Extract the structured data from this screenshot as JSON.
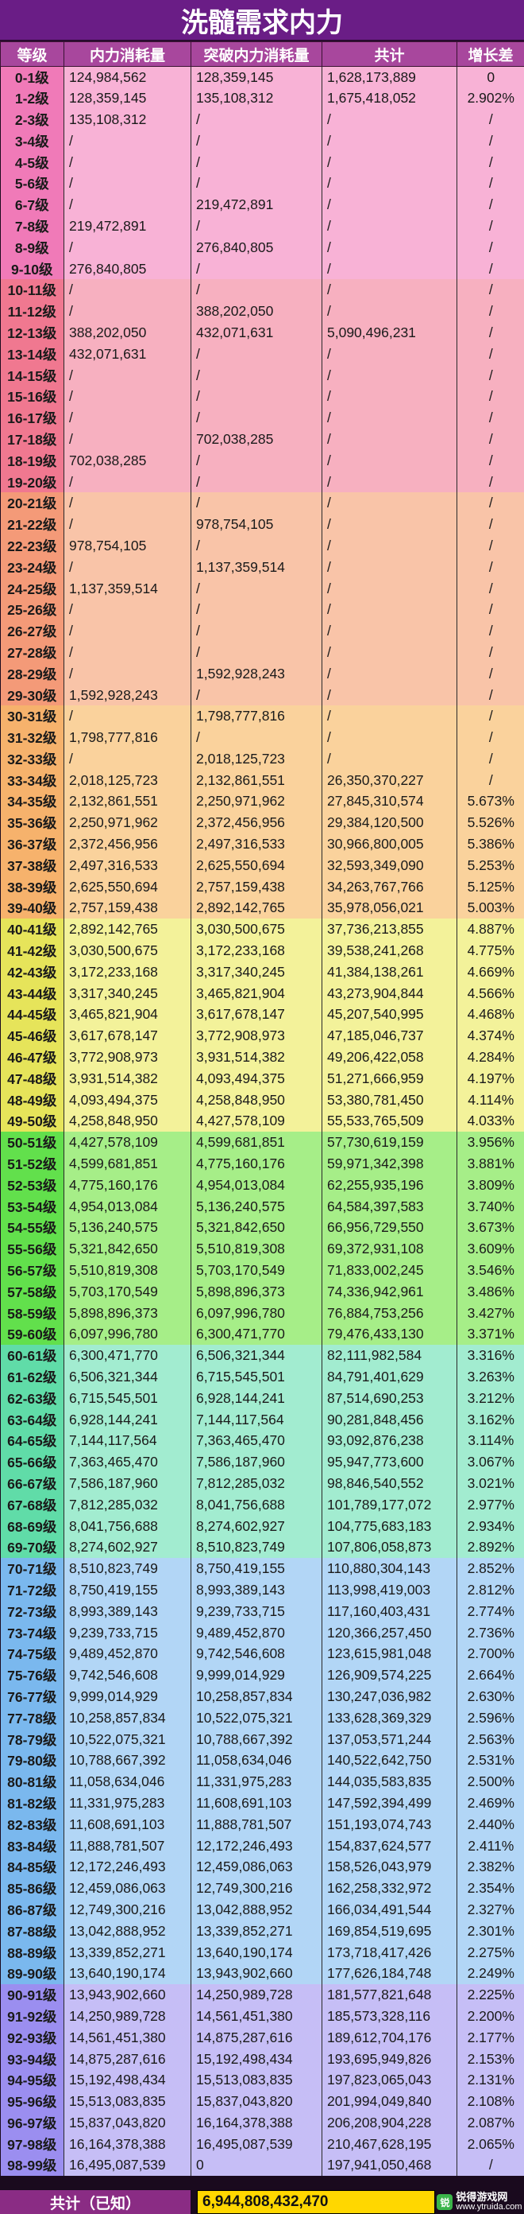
{
  "title": "洗髓需求内力",
  "headers": [
    "等级",
    "内力消耗量",
    "突破内力消耗量",
    "共计",
    "增长差"
  ],
  "band_colors": {
    "1": {
      "lvl": "#f07ab8",
      "row": "#f8b2d6"
    },
    "2": {
      "lvl": "#f07890",
      "row": "#f7b0c0"
    },
    "3": {
      "lvl": "#f49a78",
      "row": "#f9c4a8"
    },
    "4": {
      "lvl": "#f6b26c",
      "row": "#fad29c"
    },
    "5": {
      "lvl": "#e6e45a",
      "row": "#f3f29a"
    },
    "6": {
      "lvl": "#62e04c",
      "row": "#a6ee88"
    },
    "7": {
      "lvl": "#60dca8",
      "row": "#a2ecd0"
    },
    "8": {
      "lvl": "#7ab8ee",
      "row": "#b2d6f6"
    },
    "9": {
      "lvl": "#9b8ef0",
      "row": "#c6bef6"
    }
  },
  "rows": [
    {
      "level": "0-1级",
      "neili": "124,984,562",
      "tupo": "128,359,145",
      "total": "1,628,173,889",
      "inc": "0",
      "band": 1
    },
    {
      "level": "1-2级",
      "neili": "128,359,145",
      "tupo": "135,108,312",
      "total": "1,675,418,052",
      "inc": "2.902%",
      "band": 1
    },
    {
      "level": "2-3级",
      "neili": "135,108,312",
      "tupo": "/",
      "total": "/",
      "inc": "/",
      "band": 1
    },
    {
      "level": "3-4级",
      "neili": "/",
      "tupo": "/",
      "total": "/",
      "inc": "/",
      "band": 1
    },
    {
      "level": "4-5级",
      "neili": "/",
      "tupo": "/",
      "total": "/",
      "inc": "/",
      "band": 1
    },
    {
      "level": "5-6级",
      "neili": "/",
      "tupo": "/",
      "total": "/",
      "inc": "/",
      "band": 1
    },
    {
      "level": "6-7级",
      "neili": "/",
      "tupo": "219,472,891",
      "total": "/",
      "inc": "/",
      "band": 1
    },
    {
      "level": "7-8级",
      "neili": "219,472,891",
      "tupo": "/",
      "total": "/",
      "inc": "/",
      "band": 1
    },
    {
      "level": "8-9级",
      "neili": "/",
      "tupo": "276,840,805",
      "total": "/",
      "inc": "/",
      "band": 1
    },
    {
      "level": "9-10级",
      "neili": "276,840,805",
      "tupo": "/",
      "total": "/",
      "inc": "/",
      "band": 1
    },
    {
      "level": "10-11级",
      "neili": "/",
      "tupo": "/",
      "total": "/",
      "inc": "/",
      "band": 2
    },
    {
      "level": "11-12级",
      "neili": "/",
      "tupo": "388,202,050",
      "total": "/",
      "inc": "/",
      "band": 2
    },
    {
      "level": "12-13级",
      "neili": "388,202,050",
      "tupo": "432,071,631",
      "total": "5,090,496,231",
      "inc": "/",
      "band": 2
    },
    {
      "level": "13-14级",
      "neili": "432,071,631",
      "tupo": "/",
      "total": "/",
      "inc": "/",
      "band": 2
    },
    {
      "level": "14-15级",
      "neili": "/",
      "tupo": "/",
      "total": "/",
      "inc": "/",
      "band": 2
    },
    {
      "level": "15-16级",
      "neili": "/",
      "tupo": "/",
      "total": "/",
      "inc": "/",
      "band": 2
    },
    {
      "level": "16-17级",
      "neili": "/",
      "tupo": "/",
      "total": "/",
      "inc": "/",
      "band": 2
    },
    {
      "level": "17-18级",
      "neili": "/",
      "tupo": "702,038,285",
      "total": "/",
      "inc": "/",
      "band": 2
    },
    {
      "level": "18-19级",
      "neili": "702,038,285",
      "tupo": "/",
      "total": "/",
      "inc": "/",
      "band": 2
    },
    {
      "level": "19-20级",
      "neili": "/",
      "tupo": "/",
      "total": "/",
      "inc": "/",
      "band": 2
    },
    {
      "level": "20-21级",
      "neili": "/",
      "tupo": "/",
      "total": "/",
      "inc": "/",
      "band": 3
    },
    {
      "level": "21-22级",
      "neili": "/",
      "tupo": "978,754,105",
      "total": "/",
      "inc": "/",
      "band": 3
    },
    {
      "level": "22-23级",
      "neili": "978,754,105",
      "tupo": "/",
      "total": "/",
      "inc": "/",
      "band": 3
    },
    {
      "level": "23-24级",
      "neili": "/",
      "tupo": "1,137,359,514",
      "total": "/",
      "inc": "/",
      "band": 3
    },
    {
      "level": "24-25级",
      "neili": "1,137,359,514",
      "tupo": "/",
      "total": "/",
      "inc": "/",
      "band": 3
    },
    {
      "level": "25-26级",
      "neili": "/",
      "tupo": "/",
      "total": "/",
      "inc": "/",
      "band": 3
    },
    {
      "level": "26-27级",
      "neili": "/",
      "tupo": "/",
      "total": "/",
      "inc": "/",
      "band": 3
    },
    {
      "level": "27-28级",
      "neili": "/",
      "tupo": "/",
      "total": "/",
      "inc": "/",
      "band": 3
    },
    {
      "level": "28-29级",
      "neili": "/",
      "tupo": "1,592,928,243",
      "total": "/",
      "inc": "/",
      "band": 3
    },
    {
      "level": "29-30级",
      "neili": "1,592,928,243",
      "tupo": "/",
      "total": "/",
      "inc": "/",
      "band": 3
    },
    {
      "level": "30-31级",
      "neili": "/",
      "tupo": "1,798,777,816",
      "total": "/",
      "inc": "/",
      "band": 4
    },
    {
      "level": "31-32级",
      "neili": "1,798,777,816",
      "tupo": "/",
      "total": "/",
      "inc": "/",
      "band": 4
    },
    {
      "level": "32-33级",
      "neili": "/",
      "tupo": "2,018,125,723",
      "total": "/",
      "inc": "/",
      "band": 4
    },
    {
      "level": "33-34级",
      "neili": "2,018,125,723",
      "tupo": "2,132,861,551",
      "total": "26,350,370,227",
      "inc": "/",
      "band": 4
    },
    {
      "level": "34-35级",
      "neili": "2,132,861,551",
      "tupo": "2,250,971,962",
      "total": "27,845,310,574",
      "inc": "5.673%",
      "band": 4
    },
    {
      "level": "35-36级",
      "neili": "2,250,971,962",
      "tupo": "2,372,456,956",
      "total": "29,384,120,500",
      "inc": "5.526%",
      "band": 4
    },
    {
      "level": "36-37级",
      "neili": "2,372,456,956",
      "tupo": "2,497,316,533",
      "total": "30,966,800,005",
      "inc": "5.386%",
      "band": 4
    },
    {
      "level": "37-38级",
      "neili": "2,497,316,533",
      "tupo": "2,625,550,694",
      "total": "32,593,349,090",
      "inc": "5.253%",
      "band": 4
    },
    {
      "level": "38-39级",
      "neili": "2,625,550,694",
      "tupo": "2,757,159,438",
      "total": "34,263,767,766",
      "inc": "5.125%",
      "band": 4
    },
    {
      "level": "39-40级",
      "neili": "2,757,159,438",
      "tupo": "2,892,142,765",
      "total": "35,978,056,021",
      "inc": "5.003%",
      "band": 4
    },
    {
      "level": "40-41级",
      "neili": "2,892,142,765",
      "tupo": "3,030,500,675",
      "total": "37,736,213,855",
      "inc": "4.887%",
      "band": 5
    },
    {
      "level": "41-42级",
      "neili": "3,030,500,675",
      "tupo": "3,172,233,168",
      "total": "39,538,241,268",
      "inc": "4.775%",
      "band": 5
    },
    {
      "level": "42-43级",
      "neili": "3,172,233,168",
      "tupo": "3,317,340,245",
      "total": "41,384,138,261",
      "inc": "4.669%",
      "band": 5
    },
    {
      "level": "43-44级",
      "neili": "3,317,340,245",
      "tupo": "3,465,821,904",
      "total": "43,273,904,844",
      "inc": "4.566%",
      "band": 5
    },
    {
      "level": "44-45级",
      "neili": "3,465,821,904",
      "tupo": "3,617,678,147",
      "total": "45,207,540,995",
      "inc": "4.468%",
      "band": 5
    },
    {
      "level": "45-46级",
      "neili": "3,617,678,147",
      "tupo": "3,772,908,973",
      "total": "47,185,046,737",
      "inc": "4.374%",
      "band": 5
    },
    {
      "level": "46-47级",
      "neili": "3,772,908,973",
      "tupo": "3,931,514,382",
      "total": "49,206,422,058",
      "inc": "4.284%",
      "band": 5
    },
    {
      "level": "47-48级",
      "neili": "3,931,514,382",
      "tupo": "4,093,494,375",
      "total": "51,271,666,959",
      "inc": "4.197%",
      "band": 5
    },
    {
      "level": "48-49级",
      "neili": "4,093,494,375",
      "tupo": "4,258,848,950",
      "total": "53,380,781,450",
      "inc": "4.114%",
      "band": 5
    },
    {
      "level": "49-50级",
      "neili": "4,258,848,950",
      "tupo": "4,427,578,109",
      "total": "55,533,765,509",
      "inc": "4.033%",
      "band": 5
    },
    {
      "level": "50-51级",
      "neili": "4,427,578,109",
      "tupo": "4,599,681,851",
      "total": "57,730,619,159",
      "inc": "3.956%",
      "band": 6
    },
    {
      "level": "51-52级",
      "neili": "4,599,681,851",
      "tupo": "4,775,160,176",
      "total": "59,971,342,398",
      "inc": "3.881%",
      "band": 6
    },
    {
      "level": "52-53级",
      "neili": "4,775,160,176",
      "tupo": "4,954,013,084",
      "total": "62,255,935,196",
      "inc": "3.809%",
      "band": 6
    },
    {
      "level": "53-54级",
      "neili": "4,954,013,084",
      "tupo": "5,136,240,575",
      "total": "64,584,397,583",
      "inc": "3.740%",
      "band": 6
    },
    {
      "level": "54-55级",
      "neili": "5,136,240,575",
      "tupo": "5,321,842,650",
      "total": "66,956,729,550",
      "inc": "3.673%",
      "band": 6
    },
    {
      "level": "55-56级",
      "neili": "5,321,842,650",
      "tupo": "5,510,819,308",
      "total": "69,372,931,108",
      "inc": "3.609%",
      "band": 6
    },
    {
      "level": "56-57级",
      "neili": "5,510,819,308",
      "tupo": "5,703,170,549",
      "total": "71,833,002,245",
      "inc": "3.546%",
      "band": 6
    },
    {
      "level": "57-58级",
      "neili": "5,703,170,549",
      "tupo": "5,898,896,373",
      "total": "74,336,942,961",
      "inc": "3.486%",
      "band": 6
    },
    {
      "level": "58-59级",
      "neili": "5,898,896,373",
      "tupo": "6,097,996,780",
      "total": "76,884,753,256",
      "inc": "3.427%",
      "band": 6
    },
    {
      "level": "59-60级",
      "neili": "6,097,996,780",
      "tupo": "6,300,471,770",
      "total": "79,476,433,130",
      "inc": "3.371%",
      "band": 6
    },
    {
      "level": "60-61级",
      "neili": "6,300,471,770",
      "tupo": "6,506,321,344",
      "total": "82,111,982,584",
      "inc": "3.316%",
      "band": 7
    },
    {
      "level": "61-62级",
      "neili": "6,506,321,344",
      "tupo": "6,715,545,501",
      "total": "84,791,401,629",
      "inc": "3.263%",
      "band": 7
    },
    {
      "level": "62-63级",
      "neili": "6,715,545,501",
      "tupo": "6,928,144,241",
      "total": "87,514,690,253",
      "inc": "3.212%",
      "band": 7
    },
    {
      "level": "63-64级",
      "neili": "6,928,144,241",
      "tupo": "7,144,117,564",
      "total": "90,281,848,456",
      "inc": "3.162%",
      "band": 7
    },
    {
      "level": "64-65级",
      "neili": "7,144,117,564",
      "tupo": "7,363,465,470",
      "total": "93,092,876,238",
      "inc": "3.114%",
      "band": 7
    },
    {
      "level": "65-66级",
      "neili": "7,363,465,470",
      "tupo": "7,586,187,960",
      "total": "95,947,773,600",
      "inc": "3.067%",
      "band": 7
    },
    {
      "level": "66-67级",
      "neili": "7,586,187,960",
      "tupo": "7,812,285,032",
      "total": "98,846,540,552",
      "inc": "3.021%",
      "band": 7
    },
    {
      "level": "67-68级",
      "neili": "7,812,285,032",
      "tupo": "8,041,756,688",
      "total": "101,789,177,072",
      "inc": "2.977%",
      "band": 7
    },
    {
      "level": "68-69级",
      "neili": "8,041,756,688",
      "tupo": "8,274,602,927",
      "total": "104,775,683,183",
      "inc": "2.934%",
      "band": 7
    },
    {
      "level": "69-70级",
      "neili": "8,274,602,927",
      "tupo": "8,510,823,749",
      "total": "107,806,058,873",
      "inc": "2.892%",
      "band": 7
    },
    {
      "level": "70-71级",
      "neili": "8,510,823,749",
      "tupo": "8,750,419,155",
      "total": "110,880,304,143",
      "inc": "2.852%",
      "band": 8
    },
    {
      "level": "71-72级",
      "neili": "8,750,419,155",
      "tupo": "8,993,389,143",
      "total": "113,998,419,003",
      "inc": "2.812%",
      "band": 8
    },
    {
      "level": "72-73级",
      "neili": "8,993,389,143",
      "tupo": "9,239,733,715",
      "total": "117,160,403,431",
      "inc": "2.774%",
      "band": 8
    },
    {
      "level": "73-74级",
      "neili": "9,239,733,715",
      "tupo": "9,489,452,870",
      "total": "120,366,257,450",
      "inc": "2.736%",
      "band": 8
    },
    {
      "level": "74-75级",
      "neili": "9,489,452,870",
      "tupo": "9,742,546,608",
      "total": "123,615,981,048",
      "inc": "2.700%",
      "band": 8
    },
    {
      "level": "75-76级",
      "neili": "9,742,546,608",
      "tupo": "9,999,014,929",
      "total": "126,909,574,225",
      "inc": "2.664%",
      "band": 8
    },
    {
      "level": "76-77级",
      "neili": "9,999,014,929",
      "tupo": "10,258,857,834",
      "total": "130,247,036,982",
      "inc": "2.630%",
      "band": 8
    },
    {
      "level": "77-78级",
      "neili": "10,258,857,834",
      "tupo": "10,522,075,321",
      "total": "133,628,369,329",
      "inc": "2.596%",
      "band": 8
    },
    {
      "level": "78-79级",
      "neili": "10,522,075,321",
      "tupo": "10,788,667,392",
      "total": "137,053,571,244",
      "inc": "2.563%",
      "band": 8
    },
    {
      "level": "79-80级",
      "neili": "10,788,667,392",
      "tupo": "11,058,634,046",
      "total": "140,522,642,750",
      "inc": "2.531%",
      "band": 8
    },
    {
      "level": "80-81级",
      "neili": "11,058,634,046",
      "tupo": "11,331,975,283",
      "total": "144,035,583,835",
      "inc": "2.500%",
      "band": 8
    },
    {
      "level": "81-82级",
      "neili": "11,331,975,283",
      "tupo": "11,608,691,103",
      "total": "147,592,394,499",
      "inc": "2.469%",
      "band": 8
    },
    {
      "level": "82-83级",
      "neili": "11,608,691,103",
      "tupo": "11,888,781,507",
      "total": "151,193,074,743",
      "inc": "2.440%",
      "band": 8
    },
    {
      "level": "83-84级",
      "neili": "11,888,781,507",
      "tupo": "12,172,246,493",
      "total": "154,837,624,577",
      "inc": "2.411%",
      "band": 8
    },
    {
      "level": "84-85级",
      "neili": "12,172,246,493",
      "tupo": "12,459,086,063",
      "total": "158,526,043,979",
      "inc": "2.382%",
      "band": 8
    },
    {
      "level": "85-86级",
      "neili": "12,459,086,063",
      "tupo": "12,749,300,216",
      "total": "162,258,332,972",
      "inc": "2.354%",
      "band": 8
    },
    {
      "level": "86-87级",
      "neili": "12,749,300,216",
      "tupo": "13,042,888,952",
      "total": "166,034,491,544",
      "inc": "2.327%",
      "band": 8
    },
    {
      "level": "87-88级",
      "neili": "13,042,888,952",
      "tupo": "13,339,852,271",
      "total": "169,854,519,695",
      "inc": "2.301%",
      "band": 8
    },
    {
      "level": "88-89级",
      "neili": "13,339,852,271",
      "tupo": "13,640,190,174",
      "total": "173,718,417,426",
      "inc": "2.275%",
      "band": 8
    },
    {
      "level": "89-90级",
      "neili": "13,640,190,174",
      "tupo": "13,943,902,660",
      "total": "177,626,184,748",
      "inc": "2.249%",
      "band": 8
    },
    {
      "level": "90-91级",
      "neili": "13,943,902,660",
      "tupo": "14,250,989,728",
      "total": "181,577,821,648",
      "inc": "2.225%",
      "band": 9
    },
    {
      "level": "91-92级",
      "neili": "14,250,989,728",
      "tupo": "14,561,451,380",
      "total": "185,573,328,116",
      "inc": "2.200%",
      "band": 9
    },
    {
      "level": "92-93级",
      "neili": "14,561,451,380",
      "tupo": "14,875,287,616",
      "total": "189,612,704,176",
      "inc": "2.177%",
      "band": 9
    },
    {
      "level": "93-94级",
      "neili": "14,875,287,616",
      "tupo": "15,192,498,434",
      "total": "193,695,949,826",
      "inc": "2.153%",
      "band": 9
    },
    {
      "level": "94-95级",
      "neili": "15,192,498,434",
      "tupo": "15,513,083,835",
      "total": "197,823,065,043",
      "inc": "2.131%",
      "band": 9
    },
    {
      "level": "95-96级",
      "neili": "15,513,083,835",
      "tupo": "15,837,043,820",
      "total": "201,994,049,840",
      "inc": "2.108%",
      "band": 9
    },
    {
      "level": "96-97级",
      "neili": "15,837,043,820",
      "tupo": "16,164,378,388",
      "total": "206,208,904,228",
      "inc": "2.087%",
      "band": 9
    },
    {
      "level": "97-98级",
      "neili": "16,164,378,388",
      "tupo": "16,495,087,539",
      "total": "210,467,628,195",
      "inc": "2.065%",
      "band": 9
    },
    {
      "level": "98-99级",
      "neili": "16,495,087,539",
      "tupo": "0",
      "total": "197,941,050,468",
      "inc": "/",
      "band": 9
    }
  ],
  "summary": {
    "label": "共计（已知）",
    "value": "6,944,808,432,470"
  },
  "watermark": {
    "logo": "锐",
    "name": "锐得游戏网",
    "site": "www.ytruida.com"
  }
}
